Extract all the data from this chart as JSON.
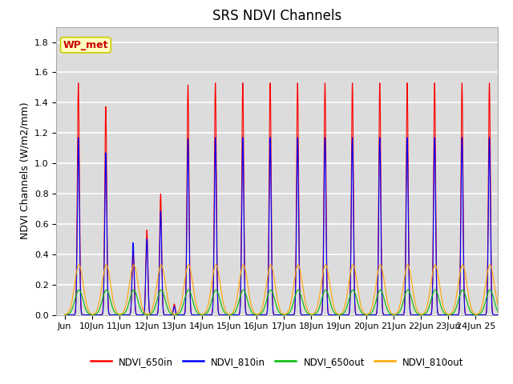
{
  "title": "SRS NDVI Channels",
  "ylabel": "NDVI Channels (W/m2/mm)",
  "xlabel": "",
  "ylim": [
    0.0,
    1.9
  ],
  "yticks": [
    0.0,
    0.2,
    0.4,
    0.6,
    0.8,
    1.0,
    1.2,
    1.4,
    1.6,
    1.8
  ],
  "xtick_labels": [
    "Jun",
    "10Jun",
    "11Jun",
    "12Jun",
    "13Jun",
    "14Jun",
    "15Jun",
    "16Jun",
    "17Jun",
    "18Jun",
    "19Jun",
    "20Jun",
    "21Jun",
    "22Jun",
    "23Jun",
    "24Jun 25"
  ],
  "legend_labels": [
    "NDVI_650in",
    "NDVI_810in",
    "NDVI_650out",
    "NDVI_810out"
  ],
  "line_colors": [
    "#ff0000",
    "#0000ff",
    "#00bb00",
    "#ffa500"
  ],
  "annotation_text": "WP_met",
  "annotation_color": "#cc0000",
  "annotation_bg": "#ffffc0",
  "background_color": "#dcdcdc",
  "grid_color": "#ffffff",
  "title_fontsize": 12,
  "label_fontsize": 9,
  "tick_fontsize": 8
}
